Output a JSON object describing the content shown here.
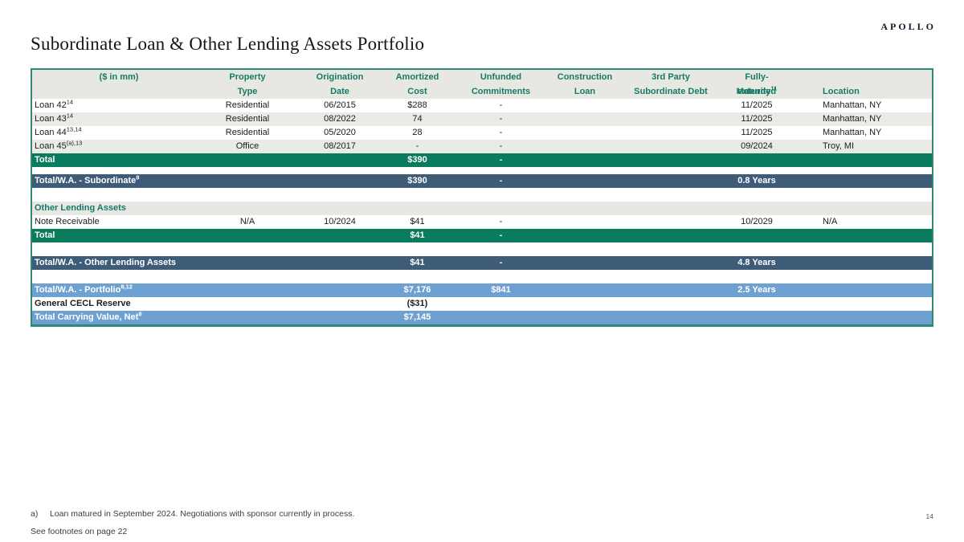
{
  "logo": "APOLLO",
  "title": "Subordinate Loan & Other Lending Assets Portfolio",
  "page_number": "14",
  "footnotes": {
    "a_label": "a)",
    "a_text": "Loan matured in September 2024. Negotiations with sponsor currently in process.",
    "see": "See footnotes on page 22"
  },
  "colors": {
    "teal_text": "#167a67",
    "green_row": "#0a7b5c",
    "slate_row": "#3e5c78",
    "blue_row": "#6fa0d2",
    "header_bg": "#e8e8e3",
    "alt_row_bg": "#ebebe6",
    "table_border": "#2e8a74"
  },
  "table": {
    "header": {
      "col0": "($ in mm)",
      "cols": [
        {
          "line1": "Property",
          "line2": "Type",
          "sup2": ""
        },
        {
          "line1": "Origination",
          "line2": "Date",
          "sup2": ""
        },
        {
          "line1": "Amortized",
          "line2": "Cost",
          "sup2": ""
        },
        {
          "line1": "Unfunded",
          "line2": "Commitments",
          "sup2": ""
        },
        {
          "line1": "Construction",
          "line2": "Loan",
          "sup2": ""
        },
        {
          "line1": "3rd Party",
          "line2": "Subordinate Debt",
          "sup2": ""
        },
        {
          "line1": "Fully-extended",
          "line2": "Maturity",
          "sup2": "11"
        },
        {
          "line1": "",
          "line2": "Location",
          "sup2": ""
        }
      ]
    },
    "rows": [
      {
        "style": "data",
        "label": "Loan 42",
        "sup": "14",
        "cells": [
          "Residential",
          "06/2015",
          "$288",
          "-",
          "",
          "",
          "11/2025",
          "Manhattan, NY"
        ]
      },
      {
        "style": "data-alt",
        "label": "Loan 43",
        "sup": "14",
        "cells": [
          "Residential",
          "08/2022",
          "74",
          "-",
          "",
          "",
          "11/2025",
          "Manhattan, NY"
        ]
      },
      {
        "style": "data",
        "label": "Loan 44",
        "sup": "13,14",
        "cells": [
          "Residential",
          "05/2020",
          "28",
          "-",
          "",
          "",
          "11/2025",
          "Manhattan, NY"
        ]
      },
      {
        "style": "data-alt",
        "label": "Loan 45",
        "sup": "(a),13",
        "cells": [
          "Office",
          "08/2017",
          "-",
          "-",
          "",
          "",
          "09/2024",
          "Troy, MI"
        ]
      },
      {
        "style": "total-green",
        "label": "Total",
        "sup": "",
        "cells": [
          "",
          "",
          "$390",
          "-",
          "",
          "",
          "",
          ""
        ]
      },
      {
        "style": "spacer-sm"
      },
      {
        "style": "total-slate",
        "label": "Total/W.A. - Subordinate",
        "sup": "8",
        "cells": [
          "",
          "",
          "$390",
          "-",
          "",
          "",
          "0.8 Years",
          ""
        ]
      },
      {
        "style": "spacer-lg"
      },
      {
        "style": "section",
        "label": "Other Lending Assets",
        "sup": "",
        "cells": [
          "",
          "",
          "",
          "",
          "",
          "",
          "",
          ""
        ]
      },
      {
        "style": "data",
        "label": "Note Receivable",
        "sup": "",
        "cells": [
          "N/A",
          "10/2024",
          "$41",
          "-",
          "",
          "",
          "10/2029",
          "N/A"
        ]
      },
      {
        "style": "total-green",
        "label": "Total",
        "sup": "",
        "cells": [
          "",
          "",
          "$41",
          "-",
          "",
          "",
          "",
          ""
        ]
      },
      {
        "style": "spacer-lg"
      },
      {
        "style": "total-slate",
        "label": "Total/W.A. - Other Lending Assets",
        "sup": "",
        "cells": [
          "",
          "",
          "$41",
          "-",
          "",
          "",
          "4.8 Years",
          ""
        ]
      },
      {
        "style": "spacer-lg"
      },
      {
        "style": "total-blue",
        "label": "Total/W.A. - Portfolio",
        "sup": "8,12",
        "cells": [
          "",
          "",
          "$7,176",
          "$841",
          "",
          "",
          "2.5 Years",
          ""
        ]
      },
      {
        "style": "cecl",
        "label": "General CECL Reserve",
        "sup": "",
        "cells": [
          "",
          "",
          "($31)",
          "",
          "",
          "",
          "",
          ""
        ]
      },
      {
        "style": "total-blue",
        "label": "Total Carrying Value, Net",
        "sup": "8",
        "cells": [
          "",
          "",
          "$7,145",
          "",
          "",
          "",
          "",
          ""
        ]
      }
    ]
  }
}
